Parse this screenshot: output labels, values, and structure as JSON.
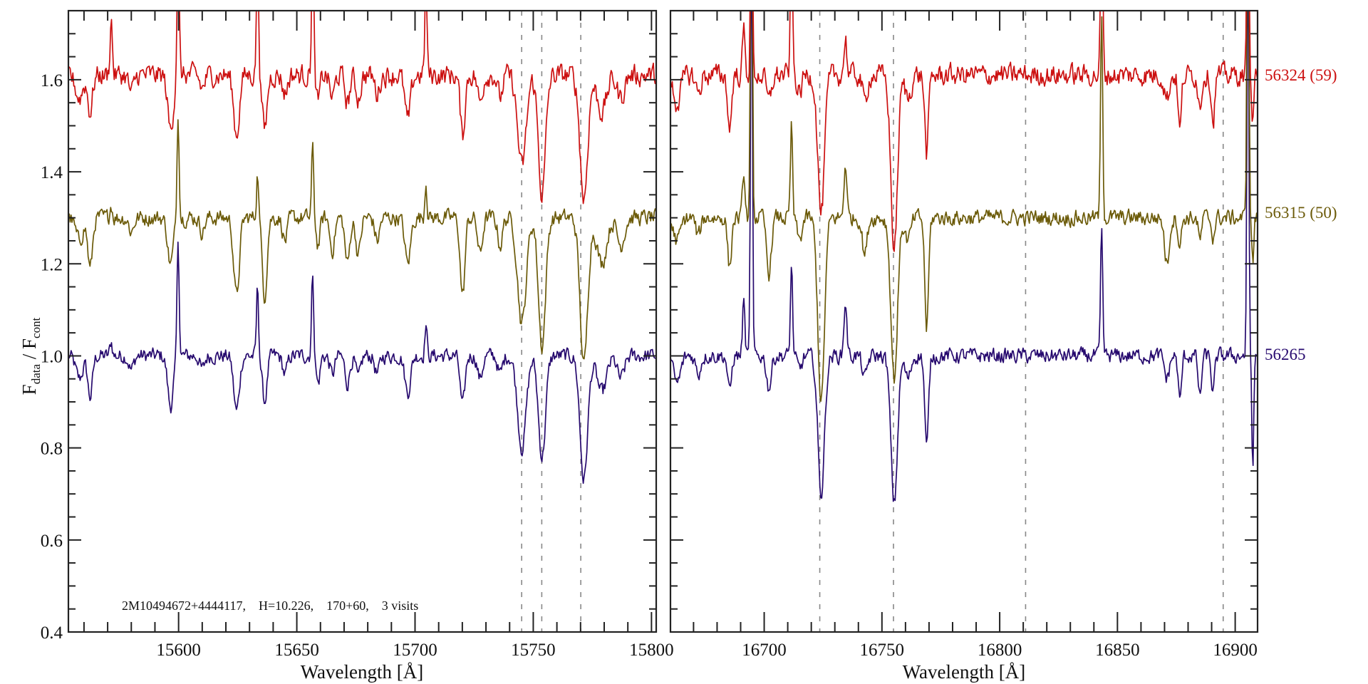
{
  "chart_data": {
    "type": "line",
    "ylabel_main": "F",
    "ylabel_sub1": "data",
    "ylabel_sep": " / F",
    "ylabel_sub2": "cont",
    "ylim": [
      0.4,
      1.75
    ],
    "yticks": [
      0.4,
      0.6,
      0.8,
      1.0,
      1.2,
      1.4,
      1.6
    ],
    "ytick_labels": [
      "0.4",
      "0.6",
      "0.8",
      "1.0",
      "1.2",
      "1.4",
      "1.6"
    ],
    "annotation": "2M10494672+4444117,    H=10.226,    170+60,    3 visits",
    "series": [
      {
        "name": "56265",
        "label": "56265",
        "color": "#26096e",
        "offset": 1.0,
        "noise": 0.014
      },
      {
        "name": "56315",
        "label": "56315 (50)",
        "color": "#6b5a08",
        "offset": 1.3,
        "noise": 0.015
      },
      {
        "name": "56324",
        "label": "56324 (59)",
        "color": "#cc1010",
        "offset": 1.61,
        "noise": 0.02
      }
    ],
    "panels": [
      {
        "xlabel": "Wavelength [Å]",
        "xlim": [
          15553.4,
          15802
        ],
        "xticks": [
          15600,
          15650,
          15700,
          15750,
          15800
        ],
        "xtick_labels": [
          "15600",
          "15650",
          "15700",
          "15750",
          "15800"
        ],
        "reference_lines": [
          15745.1,
          15753.6,
          15770.1
        ],
        "lines_note": "spectral features: [center Å, sigma Å, [amp 56265, amp 56315, amp 56324]]",
        "features": [
          [
            15558,
            1.5,
            [
              -0.05,
              -0.05,
              -0.05
            ]
          ],
          [
            15562.6,
            1,
            [
              -0.09,
              -0.11,
              -0.08
            ]
          ],
          [
            15571.5,
            0.5,
            [
              0.03,
              0.03,
              0.12
            ]
          ],
          [
            15580,
            1,
            [
              -0.03,
              -0.03,
              -0.04
            ]
          ],
          [
            15596.6,
            1.2,
            [
              -0.11,
              -0.1,
              -0.12
            ]
          ],
          [
            15599.8,
            0.45,
            [
              0.25,
              0.23,
              0.3
            ]
          ],
          [
            15610,
            1,
            [
              -0.03,
              -0.03,
              -0.03
            ]
          ],
          [
            15624.5,
            1.2,
            [
              -0.12,
              -0.17,
              -0.13
            ]
          ],
          [
            15633.4,
            0.45,
            [
              0.15,
              0.1,
              0.3
            ]
          ],
          [
            15636.4,
            1,
            [
              -0.1,
              -0.17,
              -0.12
            ]
          ],
          [
            15645,
            1,
            [
              -0.04,
              -0.05,
              -0.04
            ]
          ],
          [
            15656.7,
            0.45,
            [
              0.18,
              0.15,
              0.3
            ]
          ],
          [
            15659,
            0.8,
            [
              -0.06,
              -0.06,
              -0.06
            ]
          ],
          [
            15665,
            1,
            [
              -0.04,
              -0.07,
              -0.05
            ]
          ],
          [
            15671.4,
            1,
            [
              -0.06,
              -0.1,
              -0.06
            ]
          ],
          [
            15676,
            1,
            [
              -0.05,
              -0.08,
              -0.05
            ]
          ],
          [
            15684,
            1,
            [
              -0.04,
              -0.05,
              -0.04
            ]
          ],
          [
            15696.9,
            1.2,
            [
              -0.08,
              -0.1,
              -0.1
            ]
          ],
          [
            15704.6,
            0.45,
            [
              0.07,
              0.08,
              0.2
            ]
          ],
          [
            15720.1,
            1,
            [
              -0.11,
              -0.17,
              -0.13
            ]
          ],
          [
            15727.5,
            1,
            [
              -0.05,
              -0.08,
              -0.06
            ]
          ],
          [
            15736,
            1,
            [
              -0.04,
              -0.06,
              -0.05
            ]
          ],
          [
            15745.2,
            1.8,
            [
              -0.2,
              -0.23,
              -0.2
            ]
          ],
          [
            15753.7,
            1.5,
            [
              -0.22,
              -0.28,
              -0.26
            ]
          ],
          [
            15771.4,
            1.6,
            [
              -0.27,
              -0.32,
              -0.27
            ]
          ],
          [
            15779,
            2,
            [
              -0.08,
              -0.1,
              -0.08
            ]
          ],
          [
            15787,
            1.5,
            [
              -0.05,
              -0.06,
              -0.05
            ]
          ]
        ]
      },
      {
        "xlabel": "Wavelength [Å]",
        "xlim": [
          16660.2,
          16909.5
        ],
        "xticks": [
          16700,
          16750,
          16800,
          16850,
          16900
        ],
        "xtick_labels": [
          "16700",
          "16750",
          "16800",
          "16850",
          "16900"
        ],
        "reference_lines": [
          16723.6,
          16754.9,
          16811,
          16894.9
        ],
        "features": [
          [
            16663,
            1.5,
            [
              -0.06,
              -0.05,
              -0.06
            ]
          ],
          [
            16672,
            1,
            [
              -0.04,
              -0.04,
              -0.04
            ]
          ],
          [
            16685.3,
            0.8,
            [
              -0.08,
              -0.11,
              -0.12
            ]
          ],
          [
            16691.3,
            0.5,
            [
              0.12,
              0.1,
              0.1
            ]
          ],
          [
            16694.6,
            0.4,
            [
              0.9,
              0.9,
              0.5
            ]
          ],
          [
            16702,
            1,
            [
              -0.07,
              -0.12,
              -0.06
            ]
          ],
          [
            16711.6,
            0.45,
            [
              0.2,
              0.2,
              0.3
            ]
          ],
          [
            16715,
            1,
            [
              -0.03,
              -0.05,
              -0.04
            ]
          ],
          [
            16724.2,
            1.4,
            [
              -0.3,
              -0.4,
              -0.3
            ]
          ],
          [
            16734.5,
            0.6,
            [
              0.12,
              0.12,
              0.08
            ]
          ],
          [
            16742.7,
            1,
            [
              -0.05,
              -0.08,
              -0.06
            ]
          ],
          [
            16755.2,
            1.4,
            [
              -0.32,
              -0.35,
              -0.38
            ]
          ],
          [
            16761,
            1.2,
            [
              -0.05,
              -0.05,
              -0.05
            ]
          ],
          [
            16769,
            0.8,
            [
              -0.2,
              -0.24,
              -0.17
            ]
          ],
          [
            16843.3,
            0.45,
            [
              0.27,
              0.45,
              0.4
            ]
          ],
          [
            16871,
            1,
            [
              -0.05,
              -0.1,
              -0.05
            ]
          ],
          [
            16876.5,
            0.7,
            [
              -0.1,
              -0.06,
              -0.12
            ]
          ],
          [
            16885,
            0.7,
            [
              -0.09,
              -0.05,
              -0.07
            ]
          ],
          [
            16890.6,
            0.7,
            [
              -0.08,
              -0.04,
              -0.1
            ]
          ],
          [
            16905.4,
            0.4,
            [
              0.9,
              0.9,
              0.6
            ]
          ],
          [
            16907.5,
            0.4,
            [
              -0.25,
              -0.1,
              -0.1
            ]
          ]
        ]
      }
    ]
  }
}
